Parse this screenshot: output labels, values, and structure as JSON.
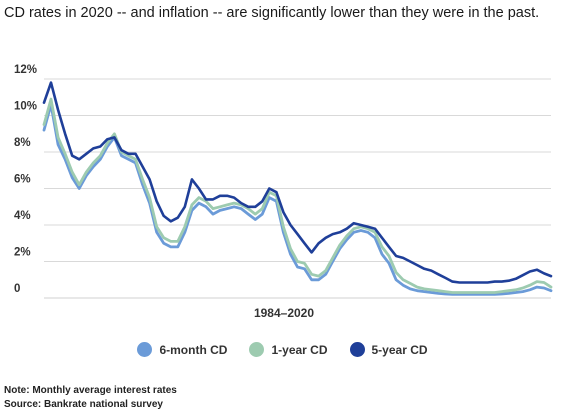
{
  "title": "CD rates in 2020 -- and inflation -- are significantly lower than they were in the past.",
  "notes": {
    "note": "Note: Monthly average interest rates",
    "source": "Source: Bankrate national survey"
  },
  "colors": {
    "six_month": "#6b9bd8",
    "one_year": "#9dcbb0",
    "five_year": "#1f3f99",
    "grid": "#d9d9d9"
  },
  "chart_data": {
    "type": "line",
    "xlabel": "1984–2020",
    "ylabel": "",
    "xlim": [
      1984,
      2020
    ],
    "ylim": [
      0,
      12
    ],
    "y_ticks": [
      "12%",
      "10%",
      "8%",
      "6%",
      "4%",
      "2%",
      "0"
    ],
    "y_tick_values": [
      12,
      10,
      8,
      6,
      4,
      2,
      0
    ],
    "grid": true,
    "legend_position": "bottom",
    "x": [
      1984,
      1984.5,
      1985,
      1985.5,
      1986,
      1986.5,
      1987,
      1987.5,
      1988,
      1988.5,
      1989,
      1989.5,
      1990,
      1990.5,
      1991,
      1991.5,
      1992,
      1992.5,
      1993,
      1993.5,
      1994,
      1994.5,
      1995,
      1995.5,
      1996,
      1996.5,
      1997,
      1997.5,
      1998,
      1998.5,
      1999,
      1999.5,
      2000,
      2000.5,
      2001,
      2001.5,
      2002,
      2002.5,
      2003,
      2003.5,
      2004,
      2004.5,
      2005,
      2005.5,
      2006,
      2006.5,
      2007,
      2007.5,
      2008,
      2008.5,
      2009,
      2009.5,
      2010,
      2010.5,
      2011,
      2011.5,
      2012,
      2012.5,
      2013,
      2013.5,
      2014,
      2014.5,
      2015,
      2015.5,
      2016,
      2016.5,
      2017,
      2017.5,
      2018,
      2018.5,
      2019,
      2019.5,
      2020
    ],
    "series": [
      {
        "name": "6-month CD",
        "color": "#6b9bd8",
        "values": [
          9.2,
          10.6,
          8.4,
          7.6,
          6.6,
          6.0,
          6.7,
          7.2,
          7.6,
          8.3,
          8.8,
          7.8,
          7.6,
          7.4,
          6.2,
          5.2,
          3.6,
          3.0,
          2.8,
          2.8,
          3.6,
          4.8,
          5.2,
          5.0,
          4.6,
          4.8,
          4.9,
          5.0,
          4.9,
          4.6,
          4.3,
          4.6,
          5.5,
          5.3,
          3.6,
          2.4,
          1.7,
          1.6,
          1.0,
          1.0,
          1.3,
          2.0,
          2.7,
          3.2,
          3.6,
          3.7,
          3.6,
          3.3,
          2.4,
          1.9,
          1.0,
          0.7,
          0.5,
          0.4,
          0.35,
          0.3,
          0.25,
          0.22,
          0.2,
          0.2,
          0.2,
          0.2,
          0.2,
          0.2,
          0.2,
          0.22,
          0.25,
          0.3,
          0.35,
          0.45,
          0.6,
          0.55,
          0.4
        ]
      },
      {
        "name": "1-year CD",
        "color": "#9dcbb0",
        "values": [
          9.5,
          10.9,
          8.8,
          7.9,
          6.9,
          6.2,
          6.9,
          7.4,
          7.8,
          8.5,
          9.0,
          8.0,
          7.8,
          7.6,
          6.5,
          5.5,
          3.9,
          3.3,
          3.1,
          3.1,
          3.9,
          5.1,
          5.5,
          5.3,
          4.9,
          5.0,
          5.1,
          5.2,
          5.1,
          4.9,
          4.6,
          4.9,
          5.8,
          5.6,
          3.9,
          2.7,
          2.0,
          1.9,
          1.3,
          1.2,
          1.5,
          2.2,
          2.9,
          3.4,
          3.8,
          3.9,
          3.8,
          3.6,
          2.8,
          2.3,
          1.4,
          1.0,
          0.8,
          0.6,
          0.5,
          0.45,
          0.4,
          0.35,
          0.3,
          0.3,
          0.3,
          0.3,
          0.3,
          0.3,
          0.3,
          0.35,
          0.4,
          0.45,
          0.55,
          0.7,
          0.9,
          0.85,
          0.6
        ]
      },
      {
        "name": "5-year CD",
        "color": "#1f3f99",
        "values": [
          10.7,
          11.8,
          10.3,
          9.0,
          7.8,
          7.6,
          7.9,
          8.2,
          8.3,
          8.7,
          8.8,
          8.1,
          7.9,
          7.9,
          7.2,
          6.5,
          5.3,
          4.5,
          4.2,
          4.4,
          5.0,
          6.5,
          6.0,
          5.4,
          5.4,
          5.6,
          5.6,
          5.5,
          5.2,
          5.0,
          5.0,
          5.3,
          6.0,
          5.8,
          4.7,
          4.0,
          3.5,
          3.0,
          2.5,
          3.0,
          3.3,
          3.5,
          3.6,
          3.8,
          4.1,
          4.0,
          3.9,
          3.8,
          3.3,
          2.8,
          2.3,
          2.2,
          2.0,
          1.8,
          1.6,
          1.5,
          1.3,
          1.1,
          0.9,
          0.85,
          0.85,
          0.85,
          0.85,
          0.85,
          0.9,
          0.9,
          0.95,
          1.05,
          1.25,
          1.45,
          1.55,
          1.35,
          1.2
        ]
      }
    ]
  }
}
